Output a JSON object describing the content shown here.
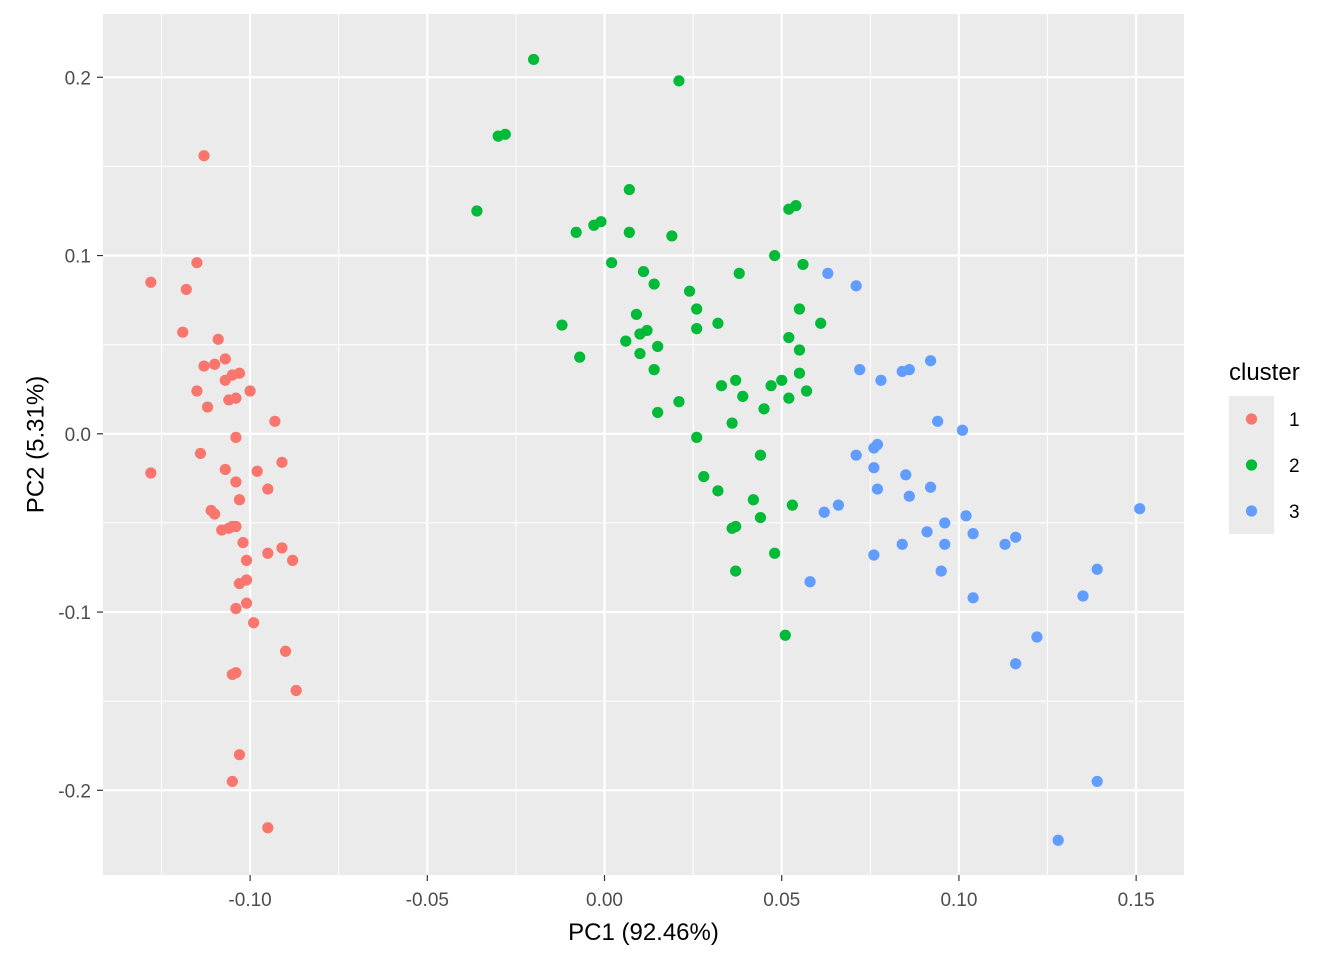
{
  "chart_data": {
    "type": "scatter",
    "xlabel": "PC1 (92.46%)",
    "ylabel": "PC2 (5.31%)",
    "xlim": [
      -0.1415,
      0.1635
    ],
    "ylim": [
      -0.2475,
      0.2355
    ],
    "x_ticks": [
      -0.1,
      -0.05,
      0.0,
      0.05,
      0.1,
      0.15
    ],
    "x_tick_labels": [
      "-0.10",
      "-0.05",
      "0.00",
      "0.05",
      "0.10",
      "0.15"
    ],
    "y_ticks": [
      -0.2,
      -0.1,
      0.0,
      0.1,
      0.2
    ],
    "y_tick_labels": [
      "-0.2",
      "-0.1",
      "0.0",
      "0.1",
      "0.2"
    ],
    "grid": true,
    "legend": {
      "title": "cluster",
      "position": "right"
    },
    "series": [
      {
        "name": "1",
        "color": "#F8766D",
        "points": [
          [
            -0.128,
            0.085
          ],
          [
            -0.128,
            -0.022
          ],
          [
            -0.113,
            0.156
          ],
          [
            -0.115,
            0.096
          ],
          [
            -0.118,
            0.081
          ],
          [
            -0.119,
            0.057
          ],
          [
            -0.109,
            0.053
          ],
          [
            -0.113,
            0.038
          ],
          [
            -0.11,
            0.039
          ],
          [
            -0.107,
            0.042
          ],
          [
            -0.103,
            0.034
          ],
          [
            -0.105,
            0.033
          ],
          [
            -0.107,
            0.03
          ],
          [
            -0.115,
            0.024
          ],
          [
            -0.1,
            0.024
          ],
          [
            -0.104,
            0.02
          ],
          [
            -0.106,
            0.019
          ],
          [
            -0.112,
            0.015
          ],
          [
            -0.093,
            0.007
          ],
          [
            -0.104,
            -0.002
          ],
          [
            -0.114,
            -0.011
          ],
          [
            -0.091,
            -0.016
          ],
          [
            -0.107,
            -0.02
          ],
          [
            -0.098,
            -0.021
          ],
          [
            -0.104,
            -0.027
          ],
          [
            -0.095,
            -0.031
          ],
          [
            -0.103,
            -0.037
          ],
          [
            -0.111,
            -0.043
          ],
          [
            -0.11,
            -0.045
          ],
          [
            -0.104,
            -0.052
          ],
          [
            -0.105,
            -0.052
          ],
          [
            -0.106,
            -0.053
          ],
          [
            -0.108,
            -0.054
          ],
          [
            -0.102,
            -0.061
          ],
          [
            -0.091,
            -0.064
          ],
          [
            -0.095,
            -0.067
          ],
          [
            -0.101,
            -0.071
          ],
          [
            -0.088,
            -0.071
          ],
          [
            -0.101,
            -0.082
          ],
          [
            -0.103,
            -0.084
          ],
          [
            -0.101,
            -0.095
          ],
          [
            -0.104,
            -0.098
          ],
          [
            -0.099,
            -0.106
          ],
          [
            -0.09,
            -0.122
          ],
          [
            -0.104,
            -0.134
          ],
          [
            -0.105,
            -0.135
          ],
          [
            -0.087,
            -0.144
          ],
          [
            -0.103,
            -0.18
          ],
          [
            -0.105,
            -0.195
          ],
          [
            -0.095,
            -0.221
          ]
        ]
      },
      {
        "name": "2",
        "color": "#00BA38",
        "points": [
          [
            -0.02,
            0.21
          ],
          [
            0.021,
            0.198
          ],
          [
            -0.028,
            0.168
          ],
          [
            -0.03,
            0.167
          ],
          [
            -0.036,
            0.125
          ],
          [
            0.007,
            0.137
          ],
          [
            0.054,
            0.128
          ],
          [
            0.052,
            0.126
          ],
          [
            -0.001,
            0.119
          ],
          [
            -0.003,
            0.117
          ],
          [
            -0.008,
            0.113
          ],
          [
            0.007,
            0.113
          ],
          [
            0.019,
            0.111
          ],
          [
            0.048,
            0.1
          ],
          [
            0.002,
            0.096
          ],
          [
            0.056,
            0.095
          ],
          [
            0.011,
            0.091
          ],
          [
            0.038,
            0.09
          ],
          [
            0.014,
            0.084
          ],
          [
            0.024,
            0.08
          ],
          [
            0.055,
            0.07
          ],
          [
            0.026,
            0.07
          ],
          [
            0.009,
            0.067
          ],
          [
            0.061,
            0.062
          ],
          [
            0.032,
            0.062
          ],
          [
            -0.012,
            0.061
          ],
          [
            0.026,
            0.059
          ],
          [
            0.012,
            0.058
          ],
          [
            0.01,
            0.056
          ],
          [
            0.052,
            0.054
          ],
          [
            0.006,
            0.052
          ],
          [
            0.015,
            0.049
          ],
          [
            0.055,
            0.047
          ],
          [
            0.01,
            0.045
          ],
          [
            -0.007,
            0.043
          ],
          [
            0.014,
            0.036
          ],
          [
            0.055,
            0.034
          ],
          [
            0.037,
            0.03
          ],
          [
            0.05,
            0.03
          ],
          [
            0.033,
            0.027
          ],
          [
            0.047,
            0.027
          ],
          [
            0.057,
            0.024
          ],
          [
            0.039,
            0.021
          ],
          [
            0.052,
            0.02
          ],
          [
            0.021,
            0.018
          ],
          [
            0.045,
            0.014
          ],
          [
            0.015,
            0.012
          ],
          [
            0.036,
            0.006
          ],
          [
            0.026,
            -0.002
          ],
          [
            0.044,
            -0.012
          ],
          [
            0.028,
            -0.024
          ],
          [
            0.032,
            -0.032
          ],
          [
            0.042,
            -0.037
          ],
          [
            0.053,
            -0.04
          ],
          [
            0.044,
            -0.047
          ],
          [
            0.037,
            -0.052
          ],
          [
            0.036,
            -0.053
          ],
          [
            0.048,
            -0.067
          ],
          [
            0.037,
            -0.077
          ],
          [
            0.051,
            -0.113
          ]
        ]
      },
      {
        "name": "3",
        "color": "#619CFF",
        "points": [
          [
            0.063,
            0.09
          ],
          [
            0.071,
            0.083
          ],
          [
            0.092,
            0.041
          ],
          [
            0.072,
            0.036
          ],
          [
            0.086,
            0.036
          ],
          [
            0.084,
            0.035
          ],
          [
            0.078,
            0.03
          ],
          [
            0.094,
            0.007
          ],
          [
            0.101,
            0.002
          ],
          [
            0.077,
            -0.006
          ],
          [
            0.076,
            -0.008
          ],
          [
            0.071,
            -0.012
          ],
          [
            0.076,
            -0.019
          ],
          [
            0.085,
            -0.023
          ],
          [
            0.092,
            -0.03
          ],
          [
            0.077,
            -0.031
          ],
          [
            0.086,
            -0.035
          ],
          [
            0.066,
            -0.04
          ],
          [
            0.151,
            -0.042
          ],
          [
            0.062,
            -0.044
          ],
          [
            0.102,
            -0.046
          ],
          [
            0.096,
            -0.05
          ],
          [
            0.091,
            -0.055
          ],
          [
            0.104,
            -0.056
          ],
          [
            0.116,
            -0.058
          ],
          [
            0.084,
            -0.062
          ],
          [
            0.096,
            -0.062
          ],
          [
            0.113,
            -0.062
          ],
          [
            0.076,
            -0.068
          ],
          [
            0.139,
            -0.076
          ],
          [
            0.095,
            -0.077
          ],
          [
            0.058,
            -0.083
          ],
          [
            0.135,
            -0.091
          ],
          [
            0.104,
            -0.092
          ],
          [
            0.122,
            -0.114
          ],
          [
            0.116,
            -0.129
          ],
          [
            0.139,
            -0.195
          ],
          [
            0.128,
            -0.228
          ]
        ]
      }
    ]
  }
}
